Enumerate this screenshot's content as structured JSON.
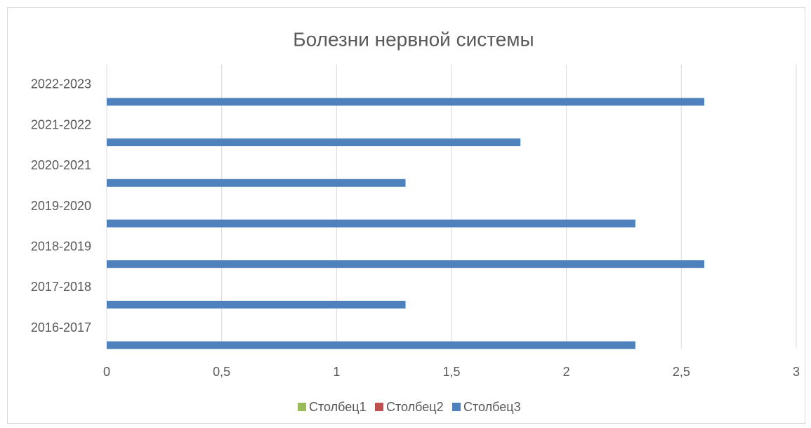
{
  "chart_data": {
    "type": "bar",
    "orientation": "horizontal",
    "title": "Болезни нервной системы",
    "categories": [
      "2016-2017",
      "2017-2018",
      "2018-2019",
      "2019-2020",
      "2020-2021",
      "2021-2022",
      "2022-2023"
    ],
    "series": [
      {
        "name": "Столбец1",
        "color": "#9bbb59",
        "values": [
          null,
          null,
          null,
          null,
          null,
          null,
          null
        ]
      },
      {
        "name": "Столбец2",
        "color": "#c0504d",
        "values": [
          null,
          null,
          null,
          null,
          null,
          null,
          null
        ]
      },
      {
        "name": "Столбец3",
        "color": "#4f81bd",
        "values": [
          2.3,
          1.3,
          2.6,
          2.3,
          1.3,
          1.8,
          2.6
        ]
      }
    ],
    "xlim": [
      0,
      3
    ],
    "xticks": [
      0,
      {
        "value": 0.5,
        "label": "0,5"
      },
      1,
      {
        "value": 1.5,
        "label": "1,5"
      },
      2,
      {
        "value": 2.5,
        "label": "2,5"
      },
      3
    ],
    "grid": true,
    "legend": "bottom"
  }
}
